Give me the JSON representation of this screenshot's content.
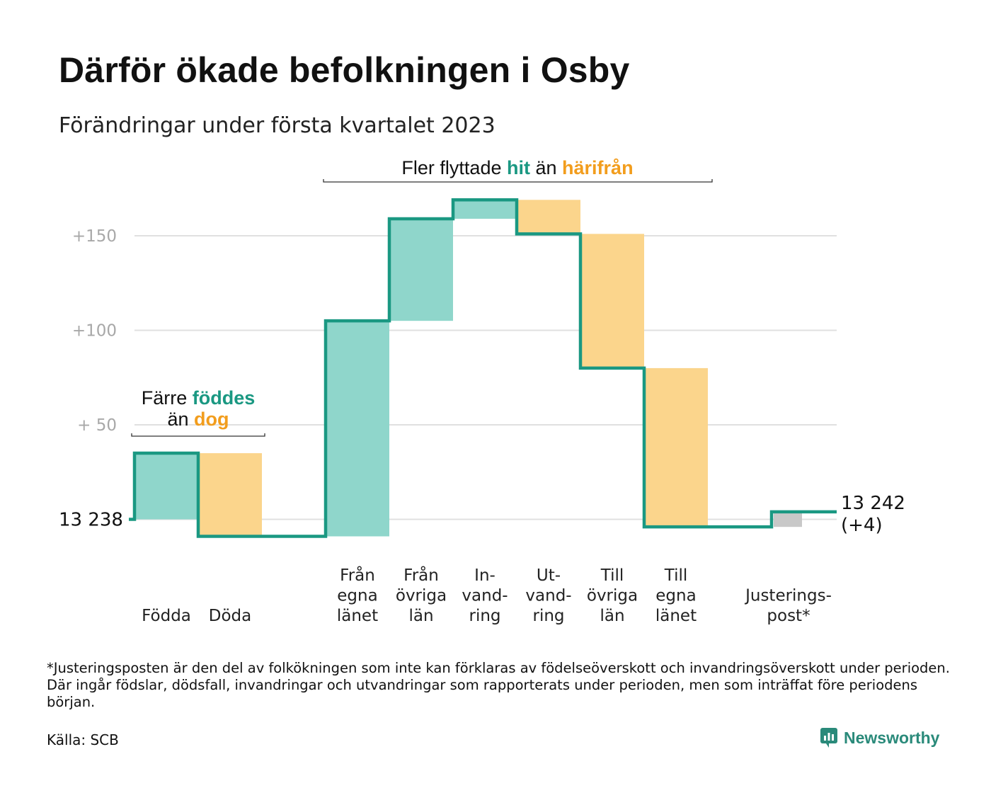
{
  "title": "Därför ökade befolkningen i Osby",
  "subtitle": "Förändringar under första kvartalet 2023",
  "colors": {
    "line": "#1a9882",
    "increase": "#8fd6cb",
    "decrease": "#fbd58c",
    "adjustment": "#c8c8c8",
    "grid": "#e0e0e0",
    "teal_text": "#1a9882",
    "orange_text": "#f29d1d"
  },
  "chart_data": {
    "type": "waterfall",
    "start_value": 13238,
    "start_label": "13 238",
    "end_value": 13242,
    "end_label": "13 242",
    "end_change_label": "(+4)",
    "ylim": [
      -10,
      170
    ],
    "yticks": [
      {
        "value": 50,
        "label": "+ 50"
      },
      {
        "value": 100,
        "label": "+100"
      },
      {
        "value": 150,
        "label": "+150"
      }
    ],
    "steps": [
      {
        "label_lines": [
          "Födda"
        ],
        "change": 35,
        "kind": "increase"
      },
      {
        "label_lines": [
          "Döda"
        ],
        "change": -44,
        "kind": "decrease"
      },
      {
        "label_lines": [],
        "change": 0,
        "kind": "gap"
      },
      {
        "label_lines": [
          "Från",
          "egna",
          "länet"
        ],
        "change": 114,
        "kind": "increase"
      },
      {
        "label_lines": [
          "Från",
          "övriga",
          "län"
        ],
        "change": 54,
        "kind": "increase"
      },
      {
        "label_lines": [
          "In-",
          "vand-",
          "ring"
        ],
        "change": 10,
        "kind": "increase"
      },
      {
        "label_lines": [
          "Ut-",
          "vand-",
          "ring"
        ],
        "change": -18,
        "kind": "decrease"
      },
      {
        "label_lines": [
          "Till",
          "övriga",
          "län"
        ],
        "change": -71,
        "kind": "decrease"
      },
      {
        "label_lines": [
          "Till",
          "egna",
          "länet"
        ],
        "change": -84,
        "kind": "decrease"
      },
      {
        "label_lines": [],
        "change": 0,
        "kind": "gap"
      },
      {
        "label_lines": [
          "Justerings-",
          "post*"
        ],
        "change": 8,
        "kind": "adjustment"
      }
    ],
    "annotations": [
      {
        "parts": [
          {
            "text": "Färre ",
            "style": "plain"
          },
          {
            "text": "föddes",
            "style": "teal"
          }
        ],
        "parts2": [
          {
            "text": "än ",
            "style": "plain"
          },
          {
            "text": "dog",
            "style": "orange"
          }
        ]
      },
      {
        "parts": [
          {
            "text": "Fler flyttade ",
            "style": "plain"
          },
          {
            "text": "hit",
            "style": "teal"
          },
          {
            "text": " än ",
            "style": "plain"
          },
          {
            "text": "härifrån",
            "style": "orange"
          }
        ]
      }
    ]
  },
  "footnote": "*Justeringsposten är den del av folkökningen som inte kan förklaras av födelseöverskott och invandringsöverskott under perioden. Där ingår födslar, dödsfall, invandringar och utvandringar som rapporterats under perioden, men som inträffat före periodens början.",
  "source": "Källa: SCB",
  "brand": {
    "name": "Newsworthy",
    "icon": "newsworthy-logo-icon"
  }
}
